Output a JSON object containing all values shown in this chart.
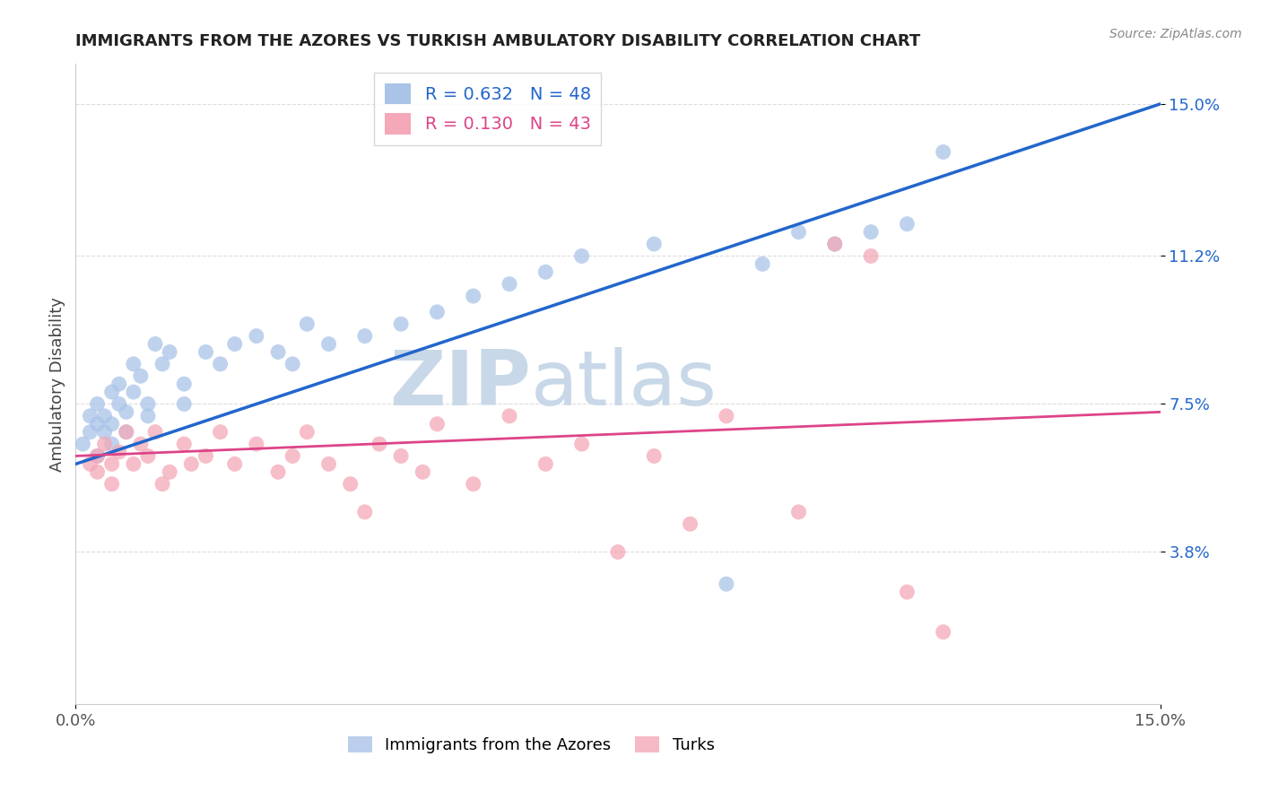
{
  "title": "IMMIGRANTS FROM THE AZORES VS TURKISH AMBULATORY DISABILITY CORRELATION CHART",
  "source": "Source: ZipAtlas.com",
  "ylabel": "Ambulatory Disability",
  "xmin": 0.0,
  "xmax": 0.15,
  "ymin": 0.0,
  "ymax": 0.16,
  "ytick_positions": [
    0.038,
    0.075,
    0.112,
    0.15
  ],
  "ytick_labels": [
    "3.8%",
    "7.5%",
    "11.2%",
    "15.0%"
  ],
  "xtick_positions": [
    0.0,
    0.15
  ],
  "xtick_labels": [
    "0.0%",
    "15.0%"
  ],
  "blue_color": "#aac4e8",
  "pink_color": "#f4a8b8",
  "blue_line_color": "#2266cc",
  "pink_line_color": "#dd4488",
  "watermark_zip": "ZIP",
  "watermark_atlas": "atlas",
  "watermark_color": "#c8d8e8",
  "background_color": "#ffffff",
  "grid_color": "#dddddd",
  "azores_x": [
    0.001,
    0.002,
    0.002,
    0.003,
    0.003,
    0.003,
    0.004,
    0.004,
    0.005,
    0.005,
    0.005,
    0.006,
    0.006,
    0.007,
    0.007,
    0.008,
    0.008,
    0.009,
    0.01,
    0.01,
    0.011,
    0.012,
    0.013,
    0.015,
    0.015,
    0.018,
    0.02,
    0.022,
    0.025,
    0.028,
    0.03,
    0.032,
    0.035,
    0.04,
    0.045,
    0.05,
    0.055,
    0.06,
    0.065,
    0.07,
    0.08,
    0.09,
    0.095,
    0.1,
    0.105,
    0.11,
    0.115,
    0.12
  ],
  "azores_y": [
    0.065,
    0.072,
    0.068,
    0.07,
    0.075,
    0.062,
    0.068,
    0.072,
    0.065,
    0.07,
    0.078,
    0.075,
    0.08,
    0.068,
    0.073,
    0.085,
    0.078,
    0.082,
    0.072,
    0.075,
    0.09,
    0.085,
    0.088,
    0.075,
    0.08,
    0.088,
    0.085,
    0.09,
    0.092,
    0.088,
    0.085,
    0.095,
    0.09,
    0.092,
    0.095,
    0.098,
    0.102,
    0.105,
    0.108,
    0.112,
    0.115,
    0.03,
    0.11,
    0.118,
    0.115,
    0.118,
    0.12,
    0.138
  ],
  "turks_x": [
    0.002,
    0.003,
    0.003,
    0.004,
    0.005,
    0.005,
    0.006,
    0.007,
    0.008,
    0.009,
    0.01,
    0.011,
    0.012,
    0.013,
    0.015,
    0.016,
    0.018,
    0.02,
    0.022,
    0.025,
    0.028,
    0.03,
    0.032,
    0.035,
    0.038,
    0.04,
    0.042,
    0.045,
    0.048,
    0.05,
    0.055,
    0.06,
    0.065,
    0.07,
    0.075,
    0.08,
    0.085,
    0.09,
    0.1,
    0.105,
    0.11,
    0.115,
    0.12
  ],
  "turks_y": [
    0.06,
    0.058,
    0.062,
    0.065,
    0.06,
    0.055,
    0.063,
    0.068,
    0.06,
    0.065,
    0.062,
    0.068,
    0.055,
    0.058,
    0.065,
    0.06,
    0.062,
    0.068,
    0.06,
    0.065,
    0.058,
    0.062,
    0.068,
    0.06,
    0.055,
    0.048,
    0.065,
    0.062,
    0.058,
    0.07,
    0.055,
    0.072,
    0.06,
    0.065,
    0.038,
    0.062,
    0.045,
    0.072,
    0.048,
    0.115,
    0.112,
    0.028,
    0.018
  ],
  "blue_line_start_y": 0.06,
  "blue_line_end_y": 0.15,
  "pink_line_start_y": 0.062,
  "pink_line_end_y": 0.073
}
